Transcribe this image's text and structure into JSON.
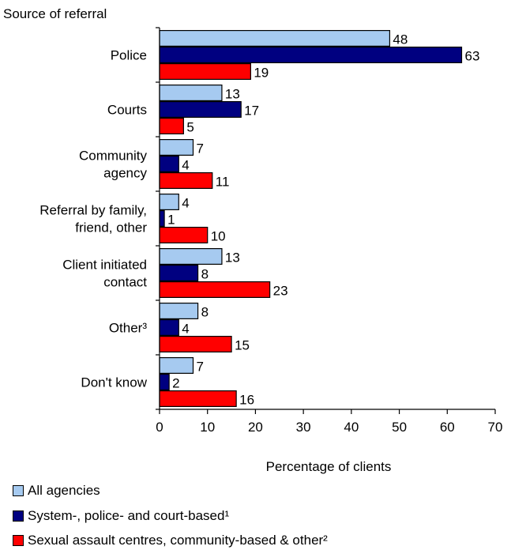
{
  "chart_data": {
    "type": "bar",
    "orientation": "horizontal",
    "ylabel": "Source of referral",
    "xlabel": "Percentage of clients",
    "xlim": [
      0,
      70
    ],
    "xticks": [
      0,
      10,
      20,
      30,
      40,
      50,
      60,
      70
    ],
    "grid": false,
    "legend_position": "bottom",
    "categories": [
      [
        "Police"
      ],
      [
        "Courts"
      ],
      [
        "Community",
        "agency"
      ],
      [
        "Referral by family,",
        "friend, other"
      ],
      [
        "Client initiated",
        "contact"
      ],
      [
        "Other³"
      ],
      [
        "Don't know"
      ]
    ],
    "series": [
      {
        "name": "All agencies",
        "color": "#a6caf0",
        "values": [
          48,
          13,
          7,
          4,
          13,
          8,
          7
        ]
      },
      {
        "name": "System-, police- and court-based¹",
        "color": "#000080",
        "values": [
          63,
          17,
          4,
          1,
          8,
          4,
          2
        ]
      },
      {
        "name": "Sexual assault centres, community-based & other²",
        "color": "#ff0000",
        "values": [
          19,
          5,
          11,
          10,
          23,
          15,
          16
        ]
      }
    ]
  }
}
